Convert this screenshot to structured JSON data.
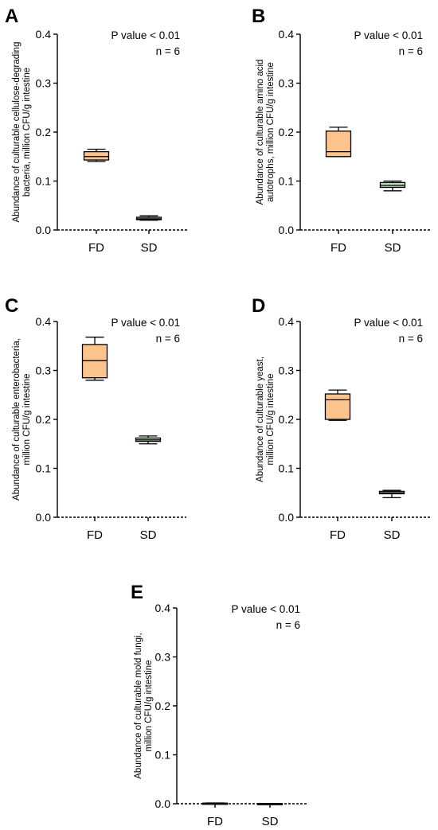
{
  "chart_data": [
    {
      "type": "box",
      "panel_label": "A",
      "ylabel": [
        "Abundance of culturable cellulose-degrading",
        "bacteria, million CFU/g intestine"
      ],
      "ylim": [
        0,
        0.4
      ],
      "yticks": [
        "0.0",
        "0.1",
        "0.2",
        "0.3",
        "0.4"
      ],
      "categories": [
        "FD",
        "SD"
      ],
      "annotation": [
        "P value < 0.01",
        "n = 6"
      ],
      "boxes": [
        {
          "category": "FD",
          "min": 0.14,
          "q1": 0.143,
          "median": 0.15,
          "q3": 0.16,
          "max": 0.165,
          "color": "#FDC38C"
        },
        {
          "category": "SD",
          "min": 0.02,
          "q1": 0.021,
          "median": 0.023,
          "q3": 0.026,
          "max": 0.029,
          "color": "#B9E0B5"
        }
      ]
    },
    {
      "type": "box",
      "panel_label": "B",
      "ylabel": [
        "Abundance of culturable amino acid",
        "autotrophs, million CFU/g intestine"
      ],
      "ylim": [
        0,
        0.4
      ],
      "yticks": [
        "0.0",
        "0.1",
        "0.2",
        "0.3",
        "0.4"
      ],
      "categories": [
        "FD",
        "SD"
      ],
      "annotation": [
        "P value < 0.01",
        "n = 6"
      ],
      "boxes": [
        {
          "category": "FD",
          "min": 0.15,
          "q1": 0.15,
          "median": 0.16,
          "q3": 0.202,
          "max": 0.21,
          "color": "#FDC38C"
        },
        {
          "category": "SD",
          "min": 0.08,
          "q1": 0.087,
          "median": 0.091,
          "q3": 0.097,
          "max": 0.1,
          "color": "#B9E0B5"
        }
      ]
    },
    {
      "type": "box",
      "panel_label": "C",
      "ylabel": [
        "Abundance of culturable enterobacteria,",
        "million CFU/g intestine"
      ],
      "ylim": [
        0,
        0.4
      ],
      "yticks": [
        "0.0",
        "0.1",
        "0.2",
        "0.3",
        "0.4"
      ],
      "categories": [
        "FD",
        "SD"
      ],
      "annotation": [
        "P value < 0.01",
        "n = 6"
      ],
      "boxes": [
        {
          "category": "FD",
          "min": 0.28,
          "q1": 0.285,
          "median": 0.32,
          "q3": 0.353,
          "max": 0.368,
          "color": "#FDC38C"
        },
        {
          "category": "SD",
          "min": 0.15,
          "q1": 0.155,
          "median": 0.158,
          "q3": 0.162,
          "max": 0.166,
          "color": "#B9E0B5"
        }
      ]
    },
    {
      "type": "box",
      "panel_label": "D",
      "ylabel": [
        "Abundance of culturable yeast,",
        "million CFU/g intestine"
      ],
      "ylim": [
        0,
        0.4
      ],
      "yticks": [
        "0.0",
        "0.1",
        "0.2",
        "0.3",
        "0.4"
      ],
      "categories": [
        "FD",
        "SD"
      ],
      "annotation": [
        "P value < 0.01",
        "n = 6"
      ],
      "boxes": [
        {
          "category": "FD",
          "min": 0.198,
          "q1": 0.2,
          "median": 0.24,
          "q3": 0.252,
          "max": 0.26,
          "color": "#FDC38C"
        },
        {
          "category": "SD",
          "min": 0.04,
          "q1": 0.048,
          "median": 0.05,
          "q3": 0.053,
          "max": 0.055,
          "color": "#B9E0B5"
        }
      ]
    },
    {
      "type": "box",
      "panel_label": "E",
      "ylabel": [
        "Abundance of culturable mold fungi,",
        "million CFU/g intestine"
      ],
      "ylim": [
        0,
        0.4
      ],
      "yticks": [
        "0.0",
        "0.1",
        "0.2",
        "0.3",
        "0.4"
      ],
      "categories": [
        "FD",
        "SD"
      ],
      "annotation": [
        "P value < 0.01",
        "n = 6"
      ],
      "boxes": [
        {
          "category": "FD",
          "min": 0.0005,
          "q1": 0.0008,
          "median": 0.001,
          "q3": 0.0012,
          "max": 0.0015,
          "color": "#FDC38C"
        },
        {
          "category": "SD",
          "min": 0.0001,
          "q1": 0.0002,
          "median": 0.0003,
          "q3": 0.0004,
          "max": 0.0005,
          "color": "#B9E0B5"
        }
      ]
    }
  ]
}
